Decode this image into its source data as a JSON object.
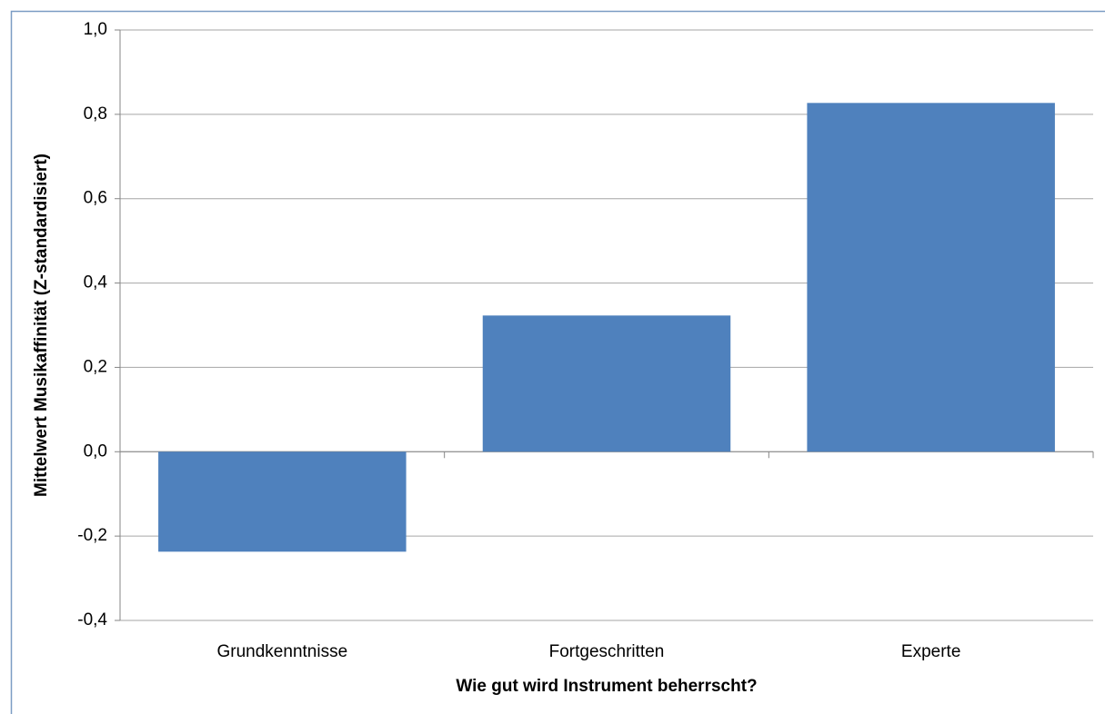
{
  "chart_data": {
    "type": "bar",
    "x_label": "Wie gut wird Instrument beherrscht?",
    "y_label": "Mittelwert Musikaffinität (Z-standardisiert)",
    "categories": [
      "Grundkenntnisse",
      "Fortgeschritten",
      "Experte"
    ],
    "values": [
      -0.237,
      0.323,
      0.827
    ],
    "color": "#4f81bd",
    "ylim": [
      -0.4,
      1.0
    ],
    "yticks": [
      {
        "value": -0.4,
        "label": "-0,4"
      },
      {
        "value": -0.2,
        "label": "-0,2"
      },
      {
        "value": 0,
        "label": "0,0"
      },
      {
        "value": 0.2,
        "label": "0,2"
      },
      {
        "value": 0.4,
        "label": "0,4"
      },
      {
        "value": 0.6,
        "label": "0,6"
      },
      {
        "value": 0.8,
        "label": "0,8"
      },
      {
        "value": 1.0,
        "label": "1,0"
      }
    ],
    "grid": true
  }
}
